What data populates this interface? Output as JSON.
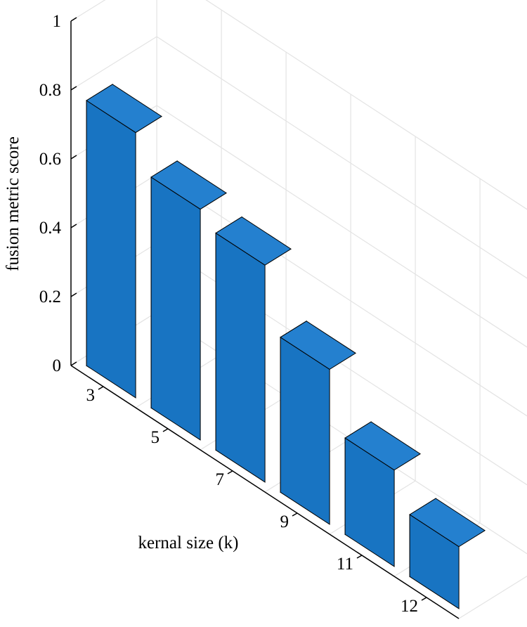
{
  "chart_data": {
    "type": "bar",
    "style": "3d",
    "categories": [
      "3",
      "5",
      "7",
      "9",
      "11",
      "12"
    ],
    "values": [
      0.77,
      0.67,
      0.63,
      0.45,
      0.28,
      0.18
    ],
    "xlabel": "kernal size (k)",
    "ylabel": "fusion metric score",
    "ylim": [
      0,
      1
    ],
    "yticks": [
      "0",
      "0.2",
      "0.4",
      "0.6",
      "0.8",
      "1"
    ],
    "title": "",
    "grid": true,
    "colors": {
      "front": "#1874c2",
      "side": "#0d66b3",
      "top": "#2480cf",
      "edge": "#000000",
      "grid": "#e3e3e3"
    }
  }
}
